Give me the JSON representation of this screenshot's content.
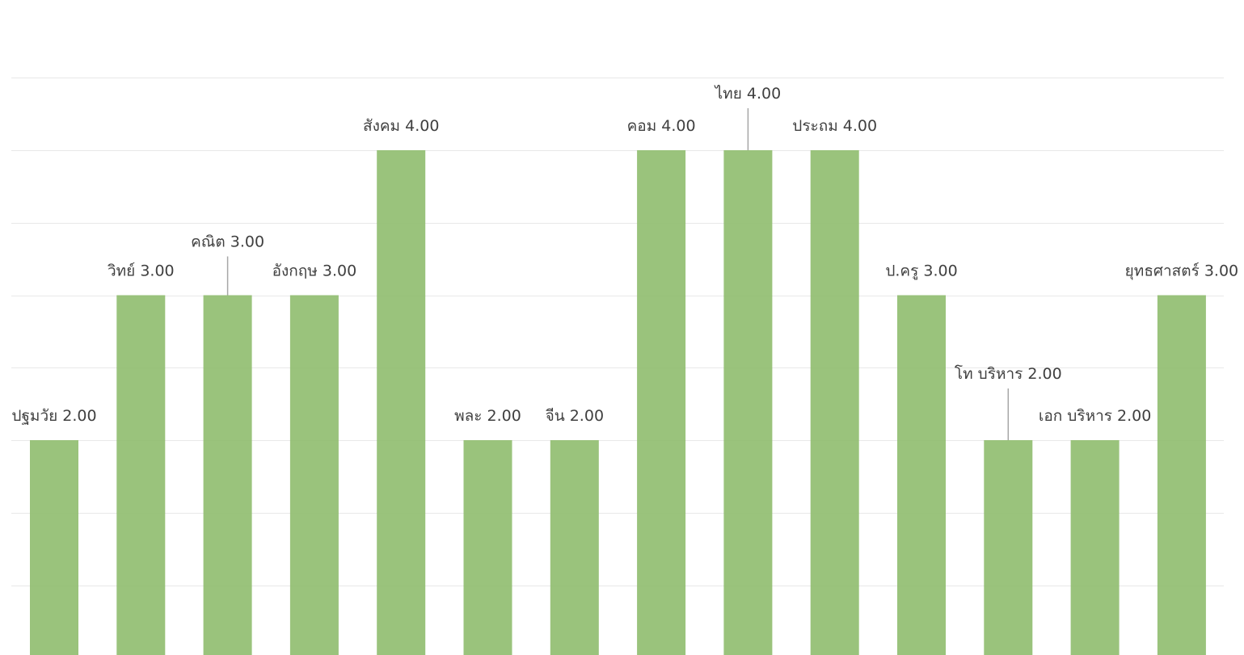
{
  "chart_data": {
    "type": "bar",
    "categories": [
      "ปฐมวัย",
      "วิทย์",
      "คณิต",
      "อังกฤษ",
      "สังคม",
      "พละ",
      "จีน",
      "คอม",
      "ไทย",
      "ประถม",
      "ป.ครู",
      "โท บริหาร",
      "เอก บริหาร",
      "ยุทธศาสตร์"
    ],
    "values": [
      2.0,
      3.0,
      3.0,
      3.0,
      4.0,
      2.0,
      2.0,
      4.0,
      4.0,
      4.0,
      3.0,
      2.0,
      2.0,
      3.0
    ],
    "labels": [
      "ปฐมวัย 2.00",
      "วิทย์ 3.00",
      "คณิต 3.00",
      "อังกฤษ 3.00",
      "สังคม 4.00",
      "พละ 2.00",
      "จีน 2.00",
      "คอม 4.00",
      "ไทย 4.00",
      "ประถม 4.00",
      "ป.ครู 3.00",
      "โท บริหาร 2.00",
      "เอก บริหาร 2.00",
      "ยุทธศาสตร์ 3.00"
    ],
    "ylim": [
      0,
      4.5
    ],
    "grid": true,
    "legend": "none",
    "bar_color": "#8fbc6e"
  }
}
